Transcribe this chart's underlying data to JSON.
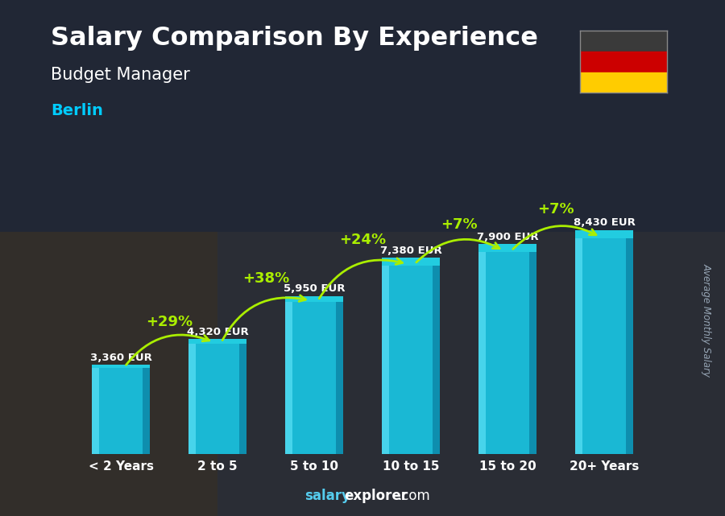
{
  "title": "Salary Comparison By Experience",
  "subtitle": "Budget Manager",
  "city": "Berlin",
  "watermark_text": "Average Monthly Salary",
  "categories": [
    "< 2 Years",
    "2 to 5",
    "5 to 10",
    "10 to 15",
    "15 to 20",
    "20+ Years"
  ],
  "values": [
    3360,
    4320,
    5950,
    7380,
    7900,
    8430
  ],
  "labels": [
    "3,360 EUR",
    "4,320 EUR",
    "5,950 EUR",
    "7,380 EUR",
    "7,900 EUR",
    "8,430 EUR"
  ],
  "pct_labels": [
    "+29%",
    "+38%",
    "+24%",
    "+7%",
    "+7%"
  ],
  "bar_face_color": "#1ab8d4",
  "bar_left_color": "#4dd8ee",
  "bar_right_color": "#0d8aaa",
  "bar_top_color": "#22cce0",
  "bg_color": "#1c2a3a",
  "title_color": "#ffffff",
  "subtitle_color": "#ffffff",
  "city_color": "#00ccff",
  "label_color": "#ffffff",
  "pct_color": "#aaee00",
  "arrow_color": "#aaee00",
  "footer_bold": "salary",
  "footer_bold2": "explorer",
  "footer_normal": ".com",
  "footer_color": "#55ccee",
  "watermark_color": "#aabbcc",
  "ylim": [
    0,
    10500
  ],
  "flag_black": "#3a3a3a",
  "flag_red": "#cc0000",
  "flag_gold": "#ffcc00"
}
